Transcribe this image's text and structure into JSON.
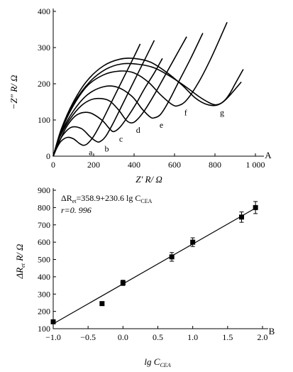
{
  "chart_data": [
    {
      "type": "line",
      "panel_label": "A",
      "xlabel": "Z′ R/ Ω",
      "ylabel": "−Z″ R/ Ω",
      "xlim": [
        0,
        1000
      ],
      "ylim": [
        0,
        400
      ],
      "x_tick_labels": [
        "0",
        "200",
        "400",
        "600",
        "800",
        "1 000"
      ],
      "x_tick_values": [
        0,
        200,
        400,
        600,
        800,
        1000
      ],
      "y_tick_labels": [
        "0",
        "100",
        "200",
        "300",
        "400"
      ],
      "y_tick_values": [
        0,
        100,
        200,
        300,
        400
      ],
      "series": [
        {
          "name": "a",
          "x": [
            0,
            20,
            40,
            70,
            100,
            130,
            150,
            170,
            200,
            240,
            280,
            320,
            360,
            400,
            430
          ],
          "y": [
            0,
            25,
            42,
            52,
            48,
            35,
            30,
            35,
            55,
            95,
            140,
            185,
            230,
            275,
            310
          ]
        },
        {
          "name": "b",
          "x": [
            0,
            20,
            50,
            90,
            140,
            180,
            210,
            230,
            260,
            300,
            340,
            380,
            420,
            460,
            500
          ],
          "y": [
            0,
            30,
            60,
            80,
            76,
            55,
            42,
            40,
            55,
            95,
            140,
            185,
            230,
            275,
            320
          ]
        },
        {
          "name": "c",
          "x": [
            0,
            30,
            70,
            120,
            180,
            240,
            280,
            300,
            330,
            370,
            410,
            450,
            500,
            540
          ],
          "y": [
            0,
            40,
            85,
            115,
            120,
            100,
            75,
            68,
            80,
            110,
            145,
            185,
            230,
            270
          ]
        },
        {
          "name": "d",
          "x": [
            0,
            30,
            80,
            140,
            200,
            270,
            320,
            360,
            385,
            410,
            450,
            500,
            550,
            600,
            660
          ],
          "y": [
            0,
            50,
            100,
            140,
            158,
            155,
            130,
            100,
            92,
            98,
            125,
            170,
            220,
            270,
            330
          ]
        },
        {
          "name": "e",
          "x": [
            0,
            40,
            100,
            170,
            250,
            320,
            390,
            440,
            480,
            500,
            530,
            570,
            620,
            680,
            740
          ],
          "y": [
            0,
            65,
            125,
            170,
            192,
            190,
            165,
            130,
            108,
            106,
            115,
            150,
            205,
            270,
            340
          ]
        },
        {
          "name": "f",
          "x": [
            0,
            40,
            100,
            170,
            250,
            330,
            400,
            470,
            530,
            590,
            620,
            660,
            720,
            780,
            860
          ],
          "y": [
            0,
            70,
            140,
            195,
            225,
            235,
            230,
            205,
            170,
            142,
            140,
            155,
            205,
            270,
            370
          ]
        },
        {
          "name": "g",
          "x": [
            0,
            40,
            100,
            170,
            250,
            330,
            400,
            480,
            560,
            640,
            700,
            750,
            800,
            840,
            870,
            900,
            940
          ],
          "y": [
            0,
            75,
            150,
            210,
            250,
            268,
            270,
            260,
            232,
            195,
            162,
            145,
            140,
            150,
            170,
            200,
            240
          ]
        },
        {
          "name": "",
          "x": [
            0,
            40,
            100,
            180,
            260,
            340,
            420,
            500,
            580,
            660,
            720,
            770,
            800,
            830,
            860,
            900,
            930
          ],
          "y": [
            0,
            70,
            145,
            205,
            240,
            255,
            254,
            244,
            220,
            190,
            165,
            148,
            142,
            146,
            160,
            185,
            205
          ]
        }
      ]
    },
    {
      "type": "scatter",
      "panel_label": "B",
      "xlabel": "lg C_CEA",
      "ylabel": "ΔR_et R/ Ω",
      "xlim": [
        -1.0,
        2.0
      ],
      "ylim": [
        100,
        900
      ],
      "x_tick_labels": [
        "−1.0",
        "−0.5",
        "0.0",
        "0.5",
        "1.0",
        "1.5",
        "2.0"
      ],
      "x_tick_values": [
        -1.0,
        -0.5,
        0.0,
        0.5,
        1.0,
        1.5,
        2.0
      ],
      "y_tick_labels": [
        "100",
        "200",
        "300",
        "400",
        "500",
        "600",
        "700",
        "800",
        "900"
      ],
      "y_tick_values": [
        100,
        200,
        300,
        400,
        500,
        600,
        700,
        800,
        900
      ],
      "points": [
        {
          "x": -1.0,
          "y": 140,
          "err": 0
        },
        {
          "x": -0.3,
          "y": 245,
          "err": 8
        },
        {
          "x": 0.0,
          "y": 365,
          "err": 15
        },
        {
          "x": 0.7,
          "y": 515,
          "err": 25
        },
        {
          "x": 1.0,
          "y": 600,
          "err": 25
        },
        {
          "x": 1.7,
          "y": 745,
          "err": 30
        },
        {
          "x": 1.9,
          "y": 800,
          "err": 35
        }
      ],
      "fit": {
        "intercept": 358.9,
        "slope": 230.6,
        "x_range": [
          -1.0,
          1.9
        ]
      },
      "equation": "ΔR_et=358.9+230.6 lg C_CEA",
      "r_label": "r=0. 996"
    }
  ]
}
